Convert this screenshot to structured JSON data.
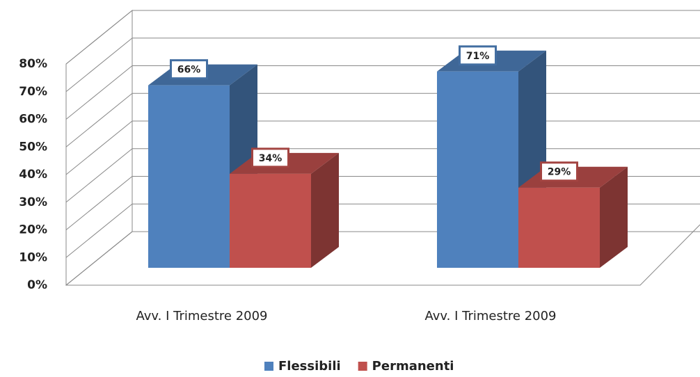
{
  "chart_data": {
    "type": "bar3d",
    "categories": [
      "Avv. I Trimestre 2009",
      "Avv. I Trimestre 2009"
    ],
    "series": [
      {
        "name": "Flessibili",
        "color": "#4f81bd",
        "values": [
          66,
          71
        ],
        "value_labels": [
          "66%",
          "71%"
        ]
      },
      {
        "name": "Permanenti",
        "color": "#c0504d",
        "values": [
          34,
          29
        ],
        "value_labels": [
          "34%",
          "29%"
        ]
      }
    ],
    "ylim": [
      0,
      80
    ],
    "yticks": [
      {
        "value": 0,
        "label": "0%"
      },
      {
        "value": 10,
        "label": "10%"
      },
      {
        "value": 20,
        "label": "20%"
      },
      {
        "value": 30,
        "label": "30%"
      },
      {
        "value": 40,
        "label": "40%"
      },
      {
        "value": 50,
        "label": "50%"
      },
      {
        "value": 60,
        "label": "60%"
      },
      {
        "value": 70,
        "label": "70%"
      },
      {
        "value": 80,
        "label": "80%"
      }
    ],
    "grid": true,
    "legend": "bottom"
  }
}
